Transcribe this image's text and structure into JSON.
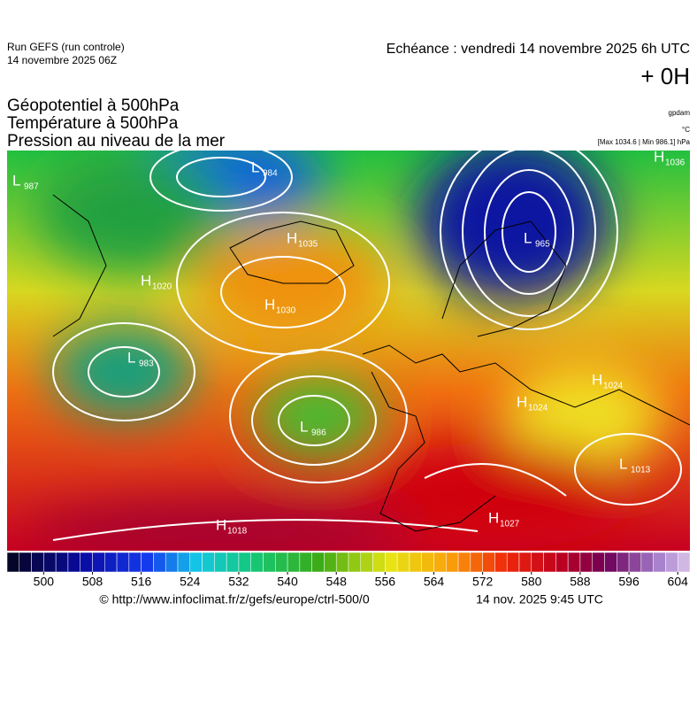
{
  "header": {
    "run": "Run GEFS (run controle)",
    "run_date": "14 novembre 2025 06Z",
    "echeance": "Echéance : vendredi 14 novembre 2025 6h UTC",
    "offset": "+ 0H"
  },
  "legend": {
    "lines": [
      "Géopotentiel à 500hPa",
      "Température à 500hPa",
      "Pression au niveau de la mer"
    ],
    "units": [
      "gpdam",
      "°C",
      "[Max 1034.6 | Min 986.1] hPa"
    ]
  },
  "centers": [
    {
      "letter": "L",
      "value": "987"
    },
    {
      "letter": "L",
      "value": "984"
    },
    {
      "letter": "H",
      "value": "1036"
    },
    {
      "letter": "H",
      "value": "1035"
    },
    {
      "letter": "L",
      "value": "965"
    },
    {
      "letter": "H",
      "value": "1020"
    },
    {
      "letter": "H",
      "value": "1030"
    },
    {
      "letter": "L",
      "value": "983"
    },
    {
      "letter": "H",
      "value": "1024"
    },
    {
      "letter": "H",
      "value": "1024"
    },
    {
      "letter": "L",
      "value": "986"
    },
    {
      "letter": "L",
      "value": "1013"
    },
    {
      "letter": "H",
      "value": "1018"
    },
    {
      "letter": "H",
      "value": "1027"
    }
  ],
  "colorbar": {
    "range": [
      494,
      606
    ],
    "step": 2,
    "ticks": [
      500,
      508,
      516,
      524,
      532,
      540,
      548,
      556,
      564,
      572,
      580,
      588,
      596,
      604
    ]
  },
  "footer": {
    "source": "© http://www.infoclimat.fr/z/gefs/europe/ctrl-500/0",
    "generated": "14 nov. 2025  9:45 UTC"
  }
}
